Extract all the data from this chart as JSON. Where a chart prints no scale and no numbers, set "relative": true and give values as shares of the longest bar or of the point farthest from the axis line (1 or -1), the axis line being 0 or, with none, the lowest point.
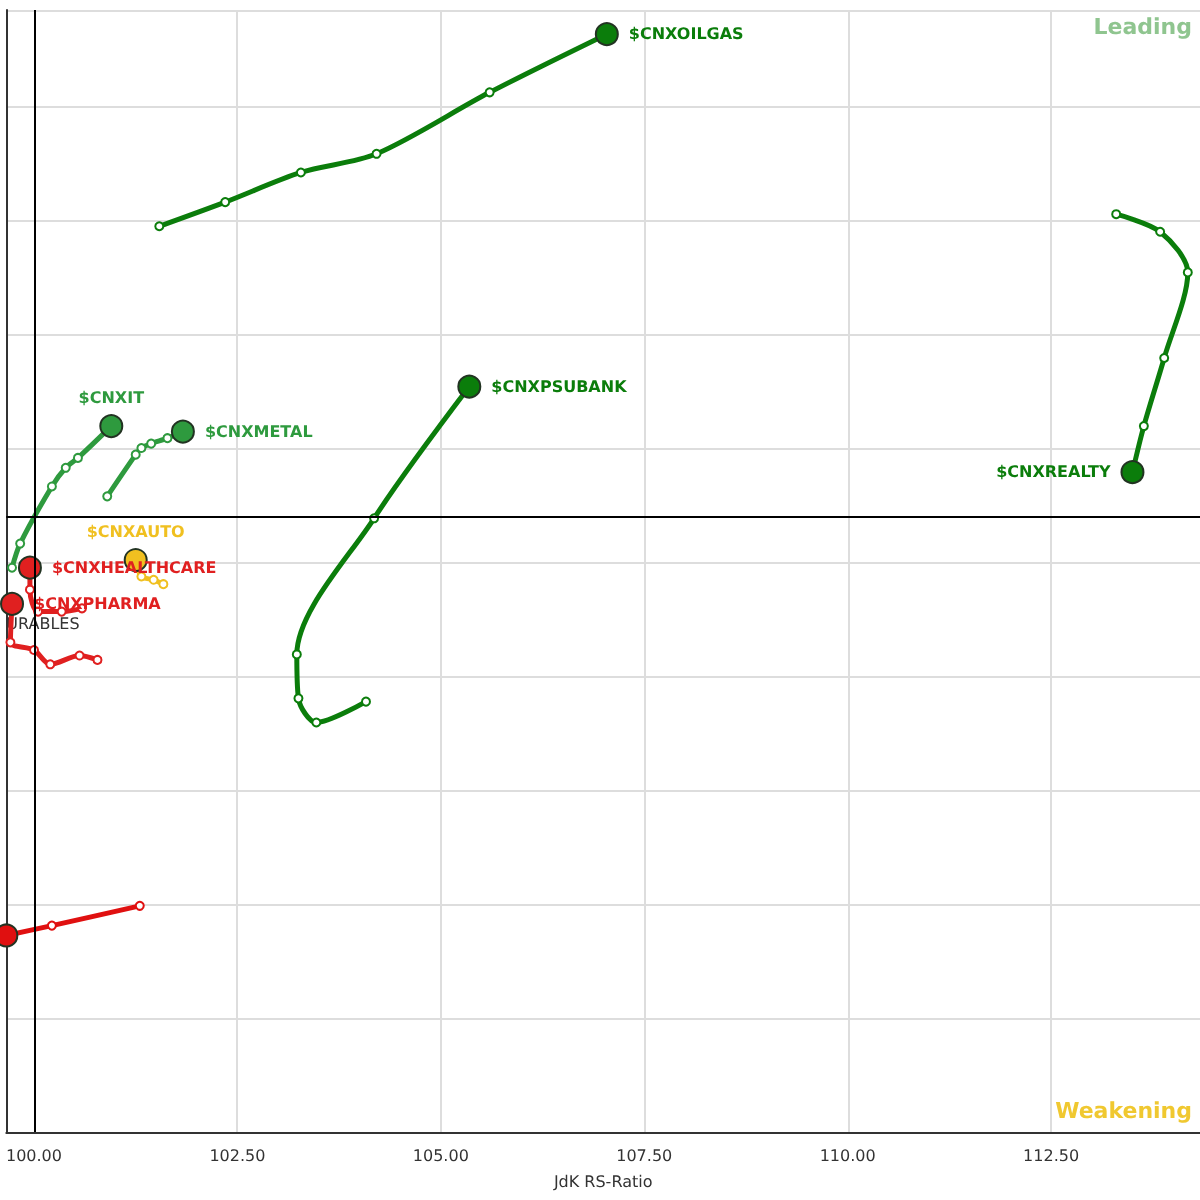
{
  "chart_data": {
    "type": "line",
    "xlabel": "JdK RS-Ratio",
    "relative": true,
    "marker": "circle",
    "grid": true,
    "tick_labels": "x",
    "legend": false,
    "xlim": [
      99.66,
      114.33
    ],
    "xticks": [
      {
        "value": 100,
        "label": "100.00"
      },
      {
        "value": 102.5,
        "label": "102.50"
      },
      {
        "value": 105,
        "label": "105.00"
      },
      {
        "value": 107.5,
        "label": "107.50"
      },
      {
        "value": 110,
        "label": "110.00"
      },
      {
        "value": 112.5,
        "label": "112.50"
      }
    ],
    "ref_lines": [
      {
        "axis": "x",
        "value": 100
      },
      {
        "axis": "y",
        "value": 0.561
      }
    ],
    "annotations": [
      "Leading",
      "Weakening",
      {
        "text": "URABLES",
        "x": 99.66,
        "y": 0.463
      }
    ],
    "series": [
      {
        "name": "$CNXOILGAS",
        "color": "#0b7d0b",
        "x": [
          101.54,
          102.35,
          103.28,
          104.21,
          105.6,
          107.04
        ],
        "values": [
          0.825,
          0.847,
          0.874,
          0.891,
          0.947,
          1.0
        ]
      },
      {
        "name": "$CNXPSUBANK",
        "color": "#0b7d0b",
        "x": [
          104.08,
          103.47,
          103.25,
          103.23,
          104.18,
          105.35
        ],
        "values": [
          0.392,
          0.373,
          0.395,
          0.435,
          0.559,
          0.679
        ]
      },
      {
        "name": "$CNXREALTY",
        "color": "#0b7d0b",
        "x": [
          113.3,
          113.84,
          114.18,
          113.89,
          113.64,
          113.5
        ],
        "values": [
          0.836,
          0.82,
          0.783,
          0.705,
          0.643,
          0.601
        ]
      },
      {
        "name": "$CNXIT",
        "color": "#2e9a3e",
        "x": [
          99.73,
          99.83,
          100.22,
          100.39,
          100.54,
          100.95
        ],
        "values": [
          0.514,
          0.536,
          0.588,
          0.605,
          0.614,
          0.643
        ]
      },
      {
        "name": "$CNXMETAL",
        "color": "#2e9a3e",
        "x": [
          100.9,
          101.25,
          101.32,
          101.44,
          101.64,
          101.83
        ],
        "values": [
          0.579,
          0.617,
          0.623,
          0.627,
          0.632,
          0.638
        ]
      },
      {
        "name": "$CNXAUTO",
        "color": "#f0c020",
        "x": [
          101.59,
          101.47,
          101.32,
          101.25
        ],
        "values": [
          0.499,
          0.503,
          0.506,
          0.521
        ]
      },
      {
        "name": "$CNXHEALTHCARE",
        "color": "#e02020",
        "x": [
          100.59,
          100.34,
          100.05,
          99.95,
          99.95
        ],
        "values": [
          0.477,
          0.474,
          0.474,
          0.494,
          0.514
        ]
      },
      {
        "name": "$CNXPHARMA",
        "color": "#e02020",
        "x": [
          100.78,
          100.56,
          100.2,
          100.0,
          99.71,
          99.73
        ],
        "values": [
          0.43,
          0.434,
          0.426,
          0.439,
          0.446,
          0.481
        ]
      },
      {
        "color": "#e01010",
        "x": [
          101.3,
          100.22,
          99.66
        ],
        "values": [
          0.206,
          0.188,
          0.179
        ]
      }
    ]
  }
}
